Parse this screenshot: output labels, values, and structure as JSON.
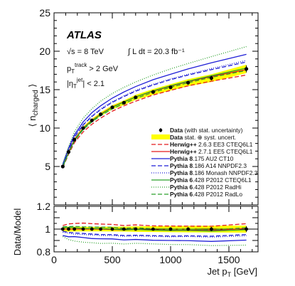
{
  "chart_data": [
    {
      "type": "line",
      "x": [
        75,
        125,
        175,
        250,
        325,
        400,
        500,
        600,
        700,
        850,
        1000,
        1150,
        1350,
        1650
      ],
      "data": {
        "name": "Data (with stat. uncertainty)",
        "values": [
          5.0,
          6.9,
          8.5,
          10.0,
          11.0,
          11.8,
          12.7,
          13.3,
          14.0,
          14.7,
          15.3,
          15.9,
          16.5,
          17.7
        ],
        "errors": [
          0.05,
          0.05,
          0.06,
          0.07,
          0.08,
          0.09,
          0.1,
          0.12,
          0.15,
          0.18,
          0.2,
          0.25,
          0.3,
          0.45
        ]
      },
      "band": {
        "name": "Data stat. ⊕ syst. uncert.",
        "color": "#ffff00",
        "half_width": [
          0.12,
          0.15,
          0.18,
          0.2,
          0.22,
          0.24,
          0.27,
          0.3,
          0.33,
          0.38,
          0.42,
          0.46,
          0.5,
          0.55
        ]
      },
      "series": [
        {
          "gen": "Herwig++",
          "tune": " 2.6.3 EE3 CTEQ6L1",
          "color": "#e31a1c",
          "dash": "6,3",
          "values": [
            4.85,
            6.6,
            8.1,
            9.5,
            10.5,
            11.3,
            12.2,
            12.9,
            13.5,
            14.3,
            14.9,
            15.5,
            16.1,
            16.9
          ]
        },
        {
          "gen": "Herwig++",
          "tune": " 2.7.1 EE5 CTEQ6L1",
          "color": "#e31a1c",
          "dash": "",
          "values": [
            5.0,
            6.9,
            8.5,
            10.0,
            11.0,
            11.8,
            12.75,
            13.4,
            14.05,
            14.8,
            15.45,
            16.05,
            16.7,
            17.6
          ]
        },
        {
          "gen": "Pythia 8",
          "tune": ".175 AU2 CT10",
          "color": "#1f1fd6",
          "dash": "",
          "values": [
            5.3,
            7.4,
            9.1,
            10.8,
            12.0,
            12.9,
            13.9,
            14.7,
            15.4,
            16.3,
            17.0,
            17.7,
            18.5,
            19.6
          ]
        },
        {
          "gen": "Pythia 8",
          "tune": ".186 A14 NNPDF2.3",
          "color": "#1f1fd6",
          "dash": "6,3",
          "values": [
            5.1,
            7.1,
            8.8,
            10.4,
            11.5,
            12.4,
            13.35,
            14.1,
            14.8,
            15.6,
            16.3,
            16.9,
            17.6,
            18.6
          ]
        },
        {
          "gen": "Pythia 8",
          "tune": ".186 Monash NNPDF2.3",
          "color": "#1f1fd6",
          "dash": "1,2",
          "values": [
            5.15,
            7.15,
            8.9,
            10.5,
            11.6,
            12.5,
            13.45,
            14.2,
            14.9,
            15.7,
            16.4,
            17.0,
            17.75,
            18.8
          ]
        },
        {
          "gen": "Pythia 6",
          "tune": ".428 P2012 CTEQ6L1",
          "color": "#2ca02c",
          "dash": "",
          "values": [
            4.95,
            6.8,
            8.4,
            9.95,
            10.95,
            11.75,
            12.7,
            13.4,
            14.05,
            14.85,
            15.5,
            16.1,
            16.8,
            17.8
          ]
        },
        {
          "gen": "Pythia 6",
          "tune": ".428 P2012 RadHi",
          "color": "#2ca02c",
          "dash": "1,2",
          "values": [
            5.35,
            7.6,
            9.5,
            11.3,
            12.5,
            13.5,
            14.5,
            15.3,
            16.0,
            16.9,
            17.7,
            18.4,
            19.3,
            20.6
          ]
        },
        {
          "gen": "Pythia 6",
          "tune": ".428 P2012 RadLo",
          "color": "#2ca02c",
          "dash": "6,3",
          "values": [
            4.9,
            6.75,
            8.3,
            9.8,
            10.8,
            11.6,
            12.5,
            13.2,
            13.85,
            14.65,
            15.3,
            15.9,
            16.6,
            17.5
          ]
        }
      ],
      "xlim": [
        0,
        1750
      ],
      "ylim": [
        0,
        25
      ],
      "xticks": [
        0,
        500,
        1000,
        1500
      ],
      "yticks": [
        0,
        5,
        10,
        15,
        20,
        25
      ],
      "xlabel": "Jet p_T [GeV]",
      "ylabel": "⟨ n_charged ⟩",
      "legend_position": "lower right",
      "annotations": {
        "experiment": "ATLAS",
        "energy": "√s = 8 TeV",
        "lumi": "∫ L dt = 20.3 fb⁻¹",
        "track_cut": "p_T^track > 2 GeV",
        "eta_cut": "|η_T^jet| < 2.1"
      }
    },
    {
      "type": "line",
      "ylabel": "Data/Model",
      "xlabel": "Jet p_T [GeV]",
      "xlim": [
        0,
        1750
      ],
      "ylim": [
        0.8,
        1.2
      ],
      "yticks": [
        0.8,
        1.0,
        1.2
      ],
      "xticks": [
        0,
        500,
        1000,
        1500
      ],
      "data_ratio": 1.0,
      "band_ratio_half_width": [
        0.024,
        0.022,
        0.021,
        0.02,
        0.02,
        0.02,
        0.021,
        0.022,
        0.024,
        0.026,
        0.027,
        0.029,
        0.03,
        0.031
      ]
    }
  ]
}
